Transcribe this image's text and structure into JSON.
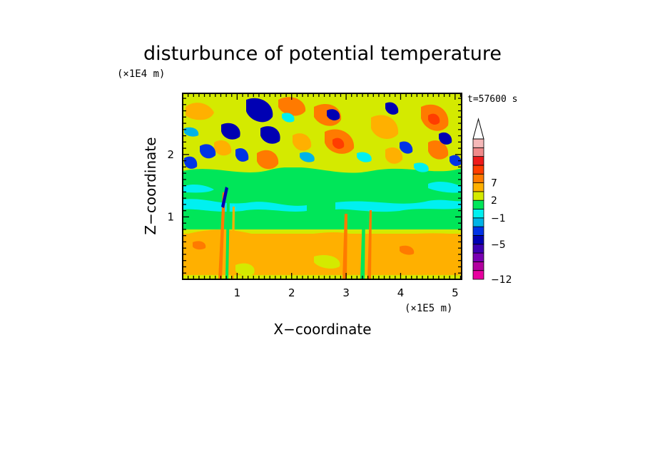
{
  "chart_data": {
    "type": "heatmap",
    "title": "disturbunce of potential temperature",
    "xlabel": "X−coordinate",
    "ylabel": "Z−coordinate",
    "x_unit": "(×1E5 m)",
    "y_unit": "(×1E4 m)",
    "time_label": "t=57600 s",
    "xlim": [
      0,
      5.12
    ],
    "ylim": [
      0,
      2.98
    ],
    "x_ticks": [
      "1",
      "2",
      "3",
      "4",
      "5"
    ],
    "y_ticks": [
      "1",
      "2"
    ],
    "colorbar": {
      "colors": [
        "#e8009f",
        "#b3009f",
        "#7a00b3",
        "#3d00b3",
        "#0000b3",
        "#0033e6",
        "#00b3e6",
        "#00f0f0",
        "#00e659",
        "#d4ea00",
        "#ffb000",
        "#ff7a00",
        "#ff3d00",
        "#ee1a1a",
        "#f08a8a",
        "#f5b8b8"
      ],
      "extend_top": true,
      "labels": [
        "7",
        "2",
        "−1",
        "−5",
        "−12"
      ]
    },
    "field_description": "contoured disturbance field: warm (yellow/orange) layer below ~0.9E4 m, near-neutral (green) band 1.0–1.7E4 m, alternating warm/cold (red/blue) wave patterns above 1.7E4 m"
  }
}
